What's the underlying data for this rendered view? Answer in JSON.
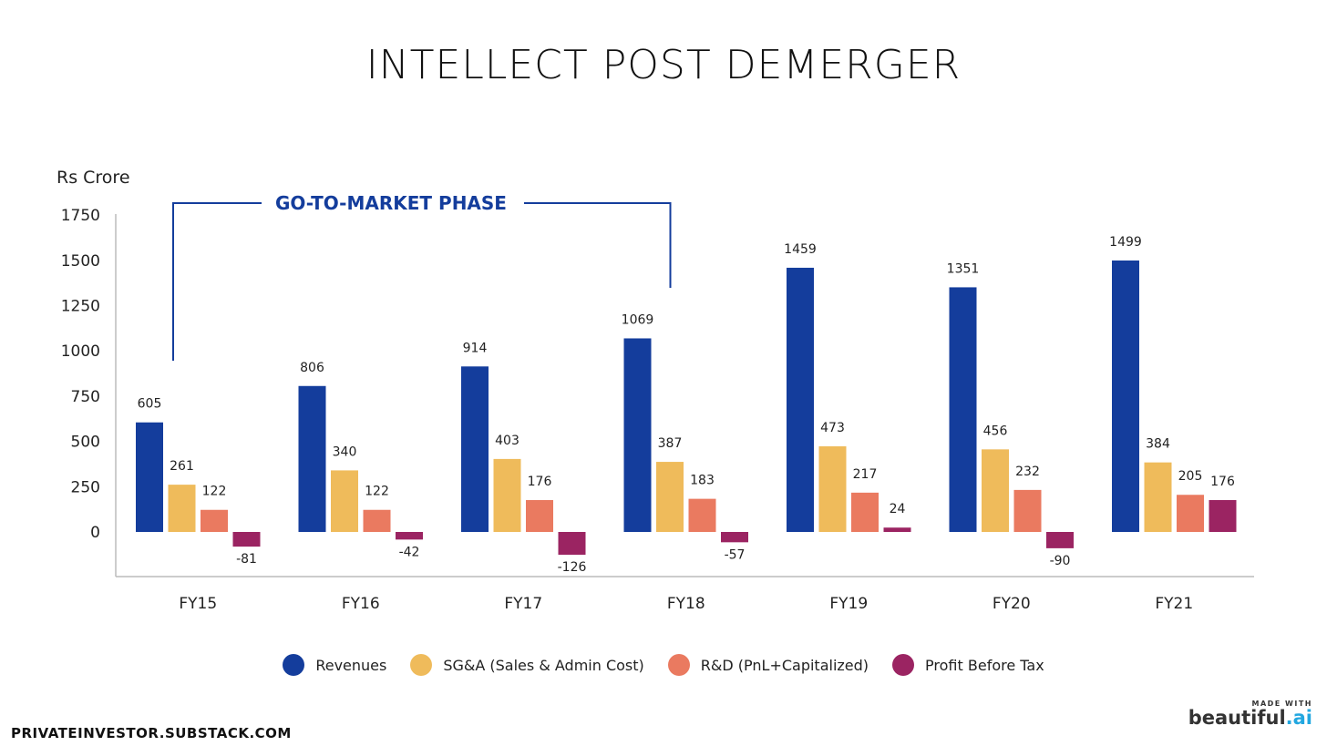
{
  "title": "INTELLECT POST DEMERGER",
  "footer": {
    "source": "PRIVATEINVESTOR.SUBSTACK.COM",
    "made_with": "MADE WITH",
    "brand": "beautiful",
    "brand_suffix": ".ai"
  },
  "chart_data": {
    "type": "bar",
    "title": "INTELLECT POST DEMERGER",
    "ylabel": "Rs Crore",
    "xlabel": "",
    "ylim": [
      -200,
      1750
    ],
    "yticks": [
      0,
      250,
      500,
      750,
      1000,
      1250,
      1500,
      1750
    ],
    "categories": [
      "FY15",
      "FY16",
      "FY17",
      "FY18",
      "FY19",
      "FY20",
      "FY21"
    ],
    "series": [
      {
        "name": "Revenues",
        "color": "#143d9c",
        "values": [
          605,
          806,
          914,
          1069,
          1459,
          1351,
          1499
        ]
      },
      {
        "name": "SG&A (Sales & Admin Cost)",
        "color": "#efbb5b",
        "values": [
          261,
          340,
          403,
          387,
          473,
          456,
          384
        ]
      },
      {
        "name": "R&D (PnL+Capitalized)",
        "color": "#ea7a60",
        "values": [
          122,
          122,
          176,
          183,
          217,
          232,
          205
        ]
      },
      {
        "name": "Profit Before Tax",
        "color": "#9b2462",
        "values": [
          -81,
          -42,
          -126,
          -57,
          24,
          -90,
          176
        ]
      }
    ],
    "annotation": {
      "text": "GO-TO-MARKET PHASE",
      "from_category": "FY15",
      "to_category": "FY18",
      "color": "#143d9c"
    },
    "legend_position": "bottom",
    "grid": false
  }
}
